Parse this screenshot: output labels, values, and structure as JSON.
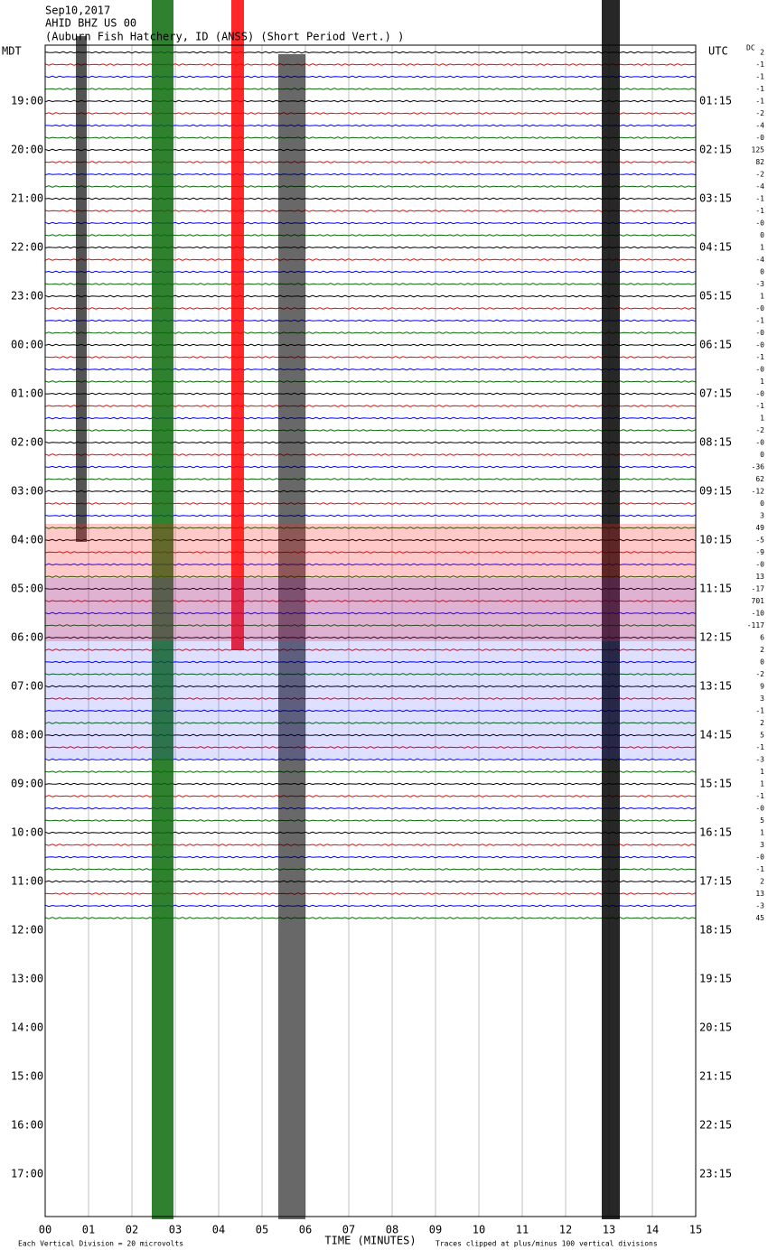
{
  "header": {
    "date": "Sep10,2017",
    "station": "AHID BHZ US 00",
    "location": "(Auburn Fish Hatchery, ID (ANSS) (Short Period Vert.) )",
    "left_zone": "MDT",
    "right_zone": "UTC",
    "dc_label": "DC"
  },
  "left_times": [
    "19:00",
    "20:00",
    "21:00",
    "22:00",
    "23:00",
    "00:00",
    "01:00",
    "02:00",
    "03:00",
    "04:00",
    "05:00",
    "06:00",
    "07:00",
    "08:00",
    "09:00",
    "10:00",
    "11:00",
    "12:00",
    "13:00",
    "14:00",
    "15:00",
    "16:00",
    "17:00"
  ],
  "right_times": [
    "01:15",
    "02:15",
    "03:15",
    "04:15",
    "05:15",
    "06:15",
    "07:15",
    "08:15",
    "09:15",
    "10:15",
    "11:15",
    "12:15",
    "13:15",
    "14:15",
    "15:15",
    "16:15",
    "17:15",
    "18:15",
    "19:15",
    "20:15",
    "21:15",
    "22:15",
    "23:15"
  ],
  "dc_offsets": [
    "2",
    "-1",
    "-1",
    "-1",
    "-1",
    "-2",
    "-4",
    "-0",
    "125",
    "82",
    "-2",
    "-4",
    "-1",
    "-1",
    "-0",
    "0",
    "1",
    "-4",
    "0",
    "-3",
    "1",
    "-0",
    "-1",
    "-0",
    "-0",
    "-1",
    "-0",
    "1",
    "-0",
    "-1",
    "1",
    "-2",
    "-0",
    "0",
    "-36",
    "62",
    "-12",
    "0",
    "3",
    "49",
    "-5",
    "-9",
    "-0",
    "13",
    "-17",
    "701",
    "-10",
    "-117",
    "6",
    "2",
    "0",
    "-2",
    "9",
    "3",
    "-1",
    "2",
    "5",
    "-1",
    "-3",
    "1",
    "1",
    "-1",
    "-0",
    "5",
    "1",
    "3",
    "-0",
    "-1",
    "2",
    "13",
    "-3",
    "45"
  ],
  "x_axis": {
    "labels": [
      "00",
      "01",
      "02",
      "03",
      "04",
      "05",
      "06",
      "07",
      "08",
      "09",
      "10",
      "11",
      "12",
      "13",
      "14",
      "15"
    ],
    "title": "TIME (MINUTES)"
  },
  "footer": {
    "division": "Each Vertical Division = 20 microvolts",
    "clip": "Traces clipped at plus/minus 100 vertical divisions"
  }
}
